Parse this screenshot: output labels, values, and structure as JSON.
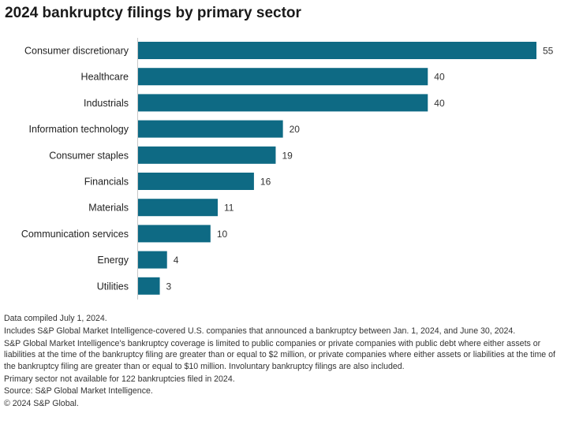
{
  "chart_data": {
    "type": "bar",
    "orientation": "horizontal",
    "title": "2024 bankruptcy filings by primary sector",
    "xlabel": "",
    "ylabel": "",
    "categories": [
      "Consumer discretionary",
      "Healthcare",
      "Industrials",
      "Information technology",
      "Consumer staples",
      "Financials",
      "Materials",
      "Communication services",
      "Energy",
      "Utilities"
    ],
    "values": [
      55,
      40,
      40,
      20,
      19,
      16,
      11,
      10,
      4,
      3
    ],
    "xlim": [
      0,
      55
    ],
    "grid": false,
    "data_labels": true,
    "bar_color": "#0e6a84"
  },
  "notes": [
    "Data compiled July 1, 2024.",
    "Includes S&P Global Market Intelligence-covered U.S. companies that announced a bankruptcy between Jan. 1, 2024, and June 30, 2024.",
    "S&P Global Market Intelligence's bankruptcy coverage is limited to public companies or private companies with public debt where either assets or liabilities at the time of the bankruptcy filing are greater than or equal to $2 million, or private companies where either assets or liabilities at the time of the bankruptcy filing are greater than or equal to $10 million. Involuntary bankruptcy filings are also included.",
    "Primary sector not available for 122 bankruptcies filed in 2024.",
    "Source: S&P Global Market Intelligence.",
    "© 2024 S&P Global."
  ]
}
